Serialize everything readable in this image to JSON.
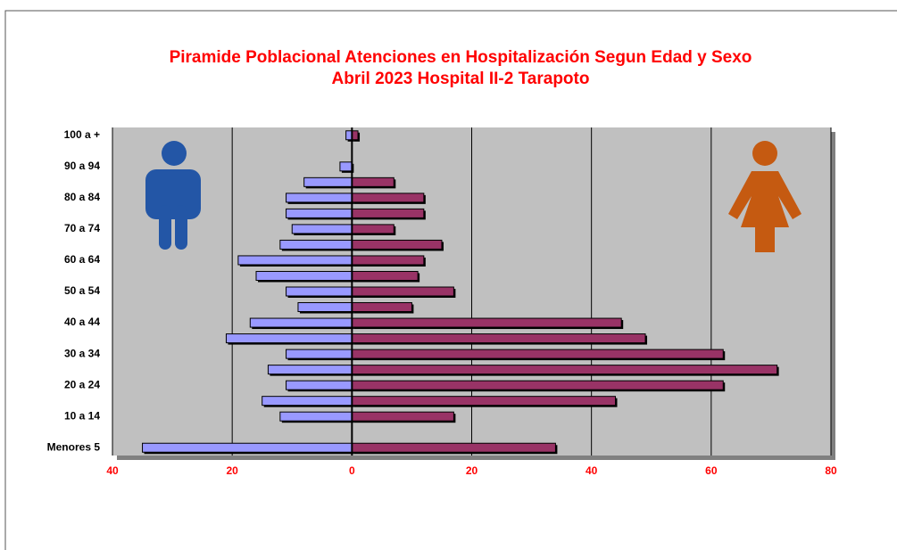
{
  "chart_data": {
    "type": "pyramid",
    "title": [
      "Piramide Poblacional  Atenciones en Hospitalización Segun Edad y Sexo",
      "Abril 2023  Hospital II-2 Tarapoto"
    ],
    "categories": [
      "Menores 5",
      null,
      "10 a 14",
      null,
      "20 a 24",
      null,
      "30 a 34",
      null,
      "40 a 44",
      null,
      "50 a 54",
      null,
      "60 a 64",
      null,
      "70 a 74",
      null,
      "80 a 84",
      null,
      "90 a 94",
      null,
      "100 a +"
    ],
    "series": [
      {
        "color": "#9999ff",
        "values": [
          -35,
          0,
          -12,
          -15,
          -11,
          -14,
          -11,
          -21,
          -17,
          -9,
          -11,
          -16,
          -19,
          -12,
          -10,
          -11,
          -11,
          -8,
          -2,
          0,
          -1
        ]
      },
      {
        "color": "#993366",
        "values": [
          34,
          0,
          17,
          44,
          62,
          71,
          62,
          49,
          45,
          10,
          17,
          11,
          12,
          15,
          7,
          12,
          12,
          7,
          0,
          0,
          1
        ]
      }
    ],
    "xlim": [
      -40,
      80
    ],
    "xticks": [
      {
        "value": -40,
        "label": "40"
      },
      {
        "value": -20,
        "label": "20"
      },
      0,
      20,
      40,
      60,
      80
    ],
    "grid": true
  }
}
